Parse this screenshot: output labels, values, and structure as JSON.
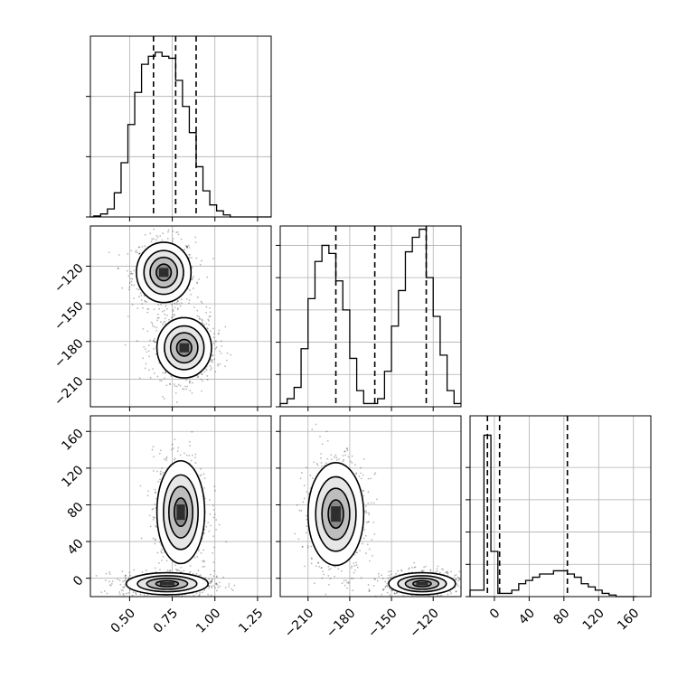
{
  "chart_data": [
    {
      "type": "histogram",
      "panel": "p1-marginal",
      "bins": [
        0.27,
        0.29,
        0.31,
        0.33,
        0.35,
        0.37,
        0.39,
        0.41,
        0.43,
        0.45,
        0.47,
        0.49,
        0.51,
        0.53,
        0.55,
        0.57,
        0.59,
        0.61,
        0.63,
        0.65,
        0.67,
        0.69,
        0.71,
        0.73,
        0.75,
        0.77,
        0.79,
        0.81,
        0.83,
        0.85,
        0.87,
        0.89,
        0.91,
        0.93,
        0.95,
        0.97,
        0.99,
        1.01,
        1.03,
        1.05,
        1.07,
        1.09,
        1.11,
        1.13,
        1.15,
        1.17,
        1.19,
        1.21,
        1.23,
        1.25,
        1.27,
        1.29,
        1.31,
        1.33
      ],
      "counts": [
        0,
        0.5,
        0.5,
        1.5,
        1.5,
        4,
        4,
        12,
        12,
        27,
        27,
        46,
        46,
        62,
        62,
        76,
        76,
        80,
        80,
        82,
        82,
        80,
        80,
        79,
        79,
        68,
        68,
        55,
        55,
        42,
        42,
        25,
        25,
        13,
        13,
        6,
        6,
        3,
        3,
        1,
        1,
        0,
        0,
        0,
        0,
        0,
        0,
        0,
        0,
        0,
        0,
        0,
        0,
        0
      ],
      "quantiles": [
        0.64,
        0.77,
        0.89
      ],
      "xlim": [
        0.27,
        1.33
      ],
      "ylim": [
        0,
        90
      ]
    },
    {
      "type": "histogram",
      "panel": "p2-marginal",
      "bins": [
        -230,
        -225,
        -220,
        -215,
        -210,
        -205,
        -200,
        -195,
        -190,
        -185,
        -180,
        -175,
        -170,
        -165,
        -160,
        -155,
        -150,
        -145,
        -140,
        -135,
        -130,
        -125,
        -120,
        -115,
        -110,
        -105,
        -100
      ],
      "counts": [
        2,
        5,
        12,
        36,
        67,
        90,
        100,
        95,
        78,
        60,
        30,
        10,
        2,
        2,
        5,
        22,
        50,
        72,
        96,
        105,
        110,
        80,
        56,
        32,
        10,
        2
      ],
      "quantiles": [
        -190,
        -162,
        -125
      ],
      "xlim": [
        -230,
        -100
      ],
      "ylim": [
        0,
        112
      ]
    },
    {
      "type": "histogram",
      "panel": "p3-marginal",
      "bins": [
        -28,
        -20,
        -12,
        -4,
        4,
        12,
        20,
        28,
        36,
        44,
        52,
        60,
        68,
        76,
        84,
        92,
        100,
        108,
        116,
        124,
        132,
        140,
        148,
        156,
        164
      ],
      "counts": [
        2,
        2,
        50,
        14,
        1,
        1,
        2,
        4,
        5,
        6,
        7,
        7,
        8,
        8,
        7,
        6,
        4,
        3,
        2,
        1,
        0.5,
        0,
        0,
        0,
        0
      ],
      "quantiles": [
        -8,
        6,
        84
      ],
      "xlim": [
        -28,
        180
      ],
      "ylim": [
        0,
        56
      ]
    },
    {
      "type": "contour",
      "panel": "p1-vs-p2",
      "modes": [
        {
          "x": 0.7,
          "y": -125,
          "sx": 0.08,
          "sy": 12
        },
        {
          "x": 0.82,
          "y": -185,
          "sx": 0.08,
          "sy": 12
        }
      ],
      "xlim": [
        0.27,
        1.33
      ],
      "ylim": [
        -232,
        -88
      ]
    },
    {
      "type": "contour",
      "panel": "p1-vs-p3",
      "modes": [
        {
          "x": 0.72,
          "y": -6,
          "sx": 0.12,
          "sy": 6
        },
        {
          "x": 0.8,
          "y": 72,
          "sx": 0.07,
          "sy": 28
        }
      ],
      "xlim": [
        0.27,
        1.33
      ],
      "ylim": [
        -20,
        177
      ]
    },
    {
      "type": "contour",
      "panel": "p2-vs-p3",
      "modes": [
        {
          "x": -128,
          "y": -6,
          "sx": 12,
          "sy": 6
        },
        {
          "x": -190,
          "y": 70,
          "sx": 10,
          "sy": 28
        }
      ],
      "xlim": [
        -230,
        -100
      ],
      "ylim": [
        -20,
        177
      ]
    }
  ],
  "axes": {
    "p1_ticks": [
      "0.50",
      "0.75",
      "1.00",
      "1.25"
    ],
    "p1_values": [
      0.5,
      0.75,
      1.0,
      1.25
    ],
    "p2_ticks": [
      "−210",
      "−180",
      "−150",
      "−120"
    ],
    "p2_values": [
      -210,
      -180,
      -150,
      -120
    ],
    "p3_ticks": [
      "0",
      "40",
      "80",
      "120",
      "160"
    ],
    "p3_values": [
      0,
      40,
      80,
      120,
      160
    ]
  },
  "colors": {
    "line": "#000000",
    "grid": "#b0b0b0",
    "density": "#000000"
  }
}
